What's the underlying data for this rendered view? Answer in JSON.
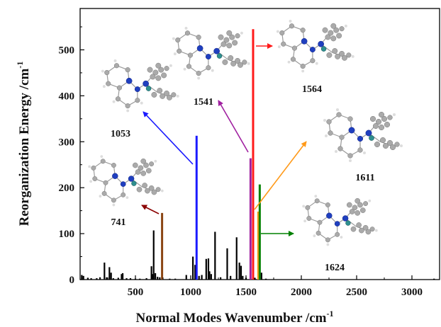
{
  "chart_data": {
    "type": "bar",
    "title": "",
    "xlabel": "Normal Modes Wavenumber /cm",
    "xlabel_sup": "-1",
    "ylabel": "Reorganization Energy /cm",
    "ylabel_sup": "-1",
    "xlim": [
      0,
      3250
    ],
    "ylim": [
      0,
      590
    ],
    "xticks": [
      500,
      1000,
      1500,
      2000,
      2500,
      3000
    ],
    "yticks": [
      0,
      100,
      200,
      300,
      400,
      500
    ],
    "grid": false,
    "bars": [
      {
        "x": 15,
        "y": 10
      },
      {
        "x": 30,
        "y": 8
      },
      {
        "x": 70,
        "y": 4
      },
      {
        "x": 100,
        "y": 3
      },
      {
        "x": 150,
        "y": 3
      },
      {
        "x": 180,
        "y": 5
      },
      {
        "x": 220,
        "y": 37
      },
      {
        "x": 240,
        "y": 5
      },
      {
        "x": 265,
        "y": 27
      },
      {
        "x": 280,
        "y": 15
      },
      {
        "x": 300,
        "y": 3
      },
      {
        "x": 345,
        "y": 4
      },
      {
        "x": 375,
        "y": 12
      },
      {
        "x": 385,
        "y": 14
      },
      {
        "x": 420,
        "y": 3
      },
      {
        "x": 455,
        "y": 3
      },
      {
        "x": 500,
        "y": 2
      },
      {
        "x": 540,
        "y": 2
      },
      {
        "x": 600,
        "y": 3
      },
      {
        "x": 645,
        "y": 29
      },
      {
        "x": 655,
        "y": 12
      },
      {
        "x": 665,
        "y": 107
      },
      {
        "x": 680,
        "y": 14
      },
      {
        "x": 700,
        "y": 6
      },
      {
        "x": 720,
        "y": 5
      },
      {
        "x": 741,
        "y": 145,
        "color": "#8b4513"
      },
      {
        "x": 810,
        "y": 2
      },
      {
        "x": 860,
        "y": 2
      },
      {
        "x": 960,
        "y": 10
      },
      {
        "x": 1020,
        "y": 50
      },
      {
        "x": 1040,
        "y": 32
      },
      {
        "x": 1053,
        "y": 313,
        "color": "#1a1aff"
      },
      {
        "x": 1075,
        "y": 8
      },
      {
        "x": 1100,
        "y": 10
      },
      {
        "x": 1140,
        "y": 45
      },
      {
        "x": 1160,
        "y": 46
      },
      {
        "x": 1170,
        "y": 18
      },
      {
        "x": 1185,
        "y": 12
      },
      {
        "x": 1220,
        "y": 104
      },
      {
        "x": 1270,
        "y": 5
      },
      {
        "x": 1330,
        "y": 68
      },
      {
        "x": 1360,
        "y": 8
      },
      {
        "x": 1415,
        "y": 92
      },
      {
        "x": 1440,
        "y": 37
      },
      {
        "x": 1455,
        "y": 30
      },
      {
        "x": 1470,
        "y": 8
      },
      {
        "x": 1500,
        "y": 4
      },
      {
        "x": 1541,
        "y": 264,
        "color": "#a020a0"
      },
      {
        "x": 1564,
        "y": 545,
        "color": "#ff1a1a"
      },
      {
        "x": 1580,
        "y": 4
      },
      {
        "x": 1611,
        "y": 148,
        "color": "#ff9a1a"
      },
      {
        "x": 1624,
        "y": 207,
        "color": "#008000"
      },
      {
        "x": 1640,
        "y": 15
      },
      {
        "x": 1680,
        "y": 2
      },
      {
        "x": 3200,
        "y": 2
      }
    ],
    "annotations": [
      {
        "label": "741",
        "color": "#8b0000"
      },
      {
        "label": "1053",
        "color": "#1a1aff"
      },
      {
        "label": "1541",
        "color": "#a020a0"
      },
      {
        "label": "1564",
        "color": "#ff1a1a"
      },
      {
        "label": "1611",
        "color": "#ff9a1a"
      },
      {
        "label": "1624",
        "color": "#008000"
      }
    ]
  }
}
